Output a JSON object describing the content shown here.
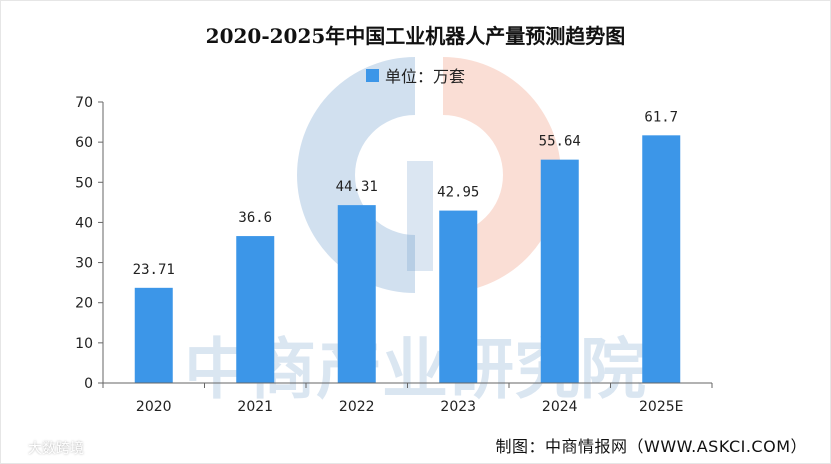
{
  "chart_data": {
    "type": "bar",
    "title": "2020-2025年中国工业机器人产量预测趋势图",
    "legend": "单位：万套",
    "categories": [
      "2020",
      "2021",
      "2022",
      "2023",
      "2024",
      "2025E"
    ],
    "values": [
      23.71,
      36.6,
      44.31,
      42.95,
      55.64,
      61.7
    ],
    "value_labels": [
      "23.71",
      "36.6",
      "44.31",
      "42.95",
      "55.64",
      "61.7"
    ],
    "ylim": [
      0,
      70
    ],
    "yticks": [
      0,
      10,
      20,
      30,
      40,
      50,
      60,
      70
    ],
    "grid": false,
    "legend_position": "top-center"
  },
  "colors": {
    "bar": "#3c96e8",
    "axis": "#666666",
    "watermark_blue": "#5b8fc4",
    "watermark_red": "#f2a990"
  },
  "watermark_text": "中商产业研究院",
  "source": "制图：中商情报网（WWW.ASKCI.COM）",
  "badge_text": "大数跨境"
}
